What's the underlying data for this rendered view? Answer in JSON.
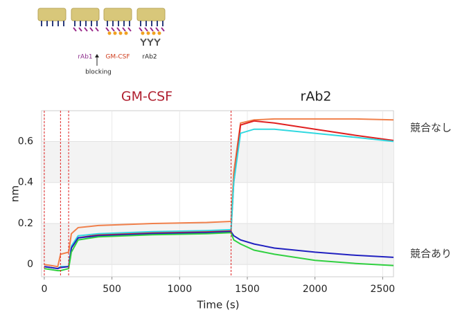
{
  "diagram": {
    "labels": [
      "rAb1",
      "GM-CSF",
      "rAb2"
    ],
    "arrow_label": "blocking"
  },
  "chart_data": {
    "type": "line",
    "x_label": "Time (s)",
    "y_label": "nm",
    "phase_labels": [
      "GM-CSF",
      "rAb2"
    ],
    "side_labels": [
      "競合なし",
      "競合あり"
    ],
    "x": [
      0,
      100,
      120,
      180,
      200,
      250,
      400,
      800,
      1200,
      1380,
      1400,
      1450,
      1550,
      1700,
      2000,
      2300,
      2580
    ],
    "series": [
      {
        "color": "#f07f4a",
        "values": [
          0,
          -0.01,
          0.05,
          0.06,
          0.15,
          0.18,
          0.19,
          0.2,
          0.205,
          0.21,
          0.45,
          0.69,
          0.705,
          0.71,
          0.71,
          0.71,
          0.705
        ]
      },
      {
        "color": "#e02020",
        "values": [
          -0.01,
          -0.02,
          -0.01,
          -0.01,
          0.08,
          0.13,
          0.145,
          0.155,
          0.16,
          0.165,
          0.4,
          0.68,
          0.7,
          0.69,
          0.66,
          0.63,
          0.605
        ]
      },
      {
        "color": "#30d8e0",
        "values": [
          -0.01,
          -0.02,
          -0.01,
          -0.01,
          0.09,
          0.14,
          0.15,
          0.16,
          0.165,
          0.17,
          0.4,
          0.64,
          0.66,
          0.66,
          0.64,
          0.62,
          0.6
        ]
      },
      {
        "color": "#2020c0",
        "values": [
          -0.01,
          -0.02,
          -0.015,
          -0.01,
          0.08,
          0.13,
          0.14,
          0.15,
          0.155,
          0.16,
          0.14,
          0.12,
          0.1,
          0.08,
          0.06,
          0.045,
          0.035
        ]
      },
      {
        "color": "#30d040",
        "values": [
          -0.02,
          -0.03,
          -0.03,
          -0.02,
          0.06,
          0.12,
          0.135,
          0.145,
          0.15,
          0.155,
          0.12,
          0.1,
          0.07,
          0.05,
          0.02,
          0.005,
          -0.005
        ]
      }
    ],
    "vlines": [
      0,
      120,
      180,
      1380
    ],
    "vline_color": "#e02020",
    "xlim": [
      -20,
      2580
    ],
    "ylim": [
      -0.06,
      0.75
    ],
    "xticks": [
      0,
      500,
      1000,
      1500,
      2000,
      2500
    ],
    "yticks": [
      0,
      0.2,
      0.4,
      0.6
    ],
    "grid": true
  }
}
